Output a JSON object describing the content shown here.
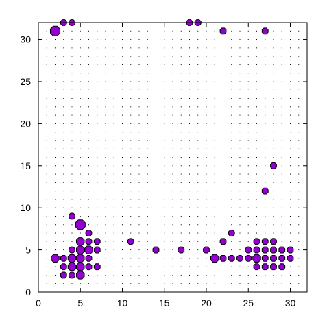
{
  "chart_data": {
    "type": "scatter",
    "title": "",
    "xlabel": "",
    "ylabel": "",
    "xlim": [
      0,
      32
    ],
    "ylim": [
      0,
      32
    ],
    "xticks": [
      0,
      5,
      10,
      15,
      20,
      25,
      30
    ],
    "yticks": [
      0,
      5,
      10,
      15,
      20,
      25,
      30
    ],
    "grid": "dotted, every integer",
    "legend": "none",
    "colors": {
      "marker_fill": "#9400d3",
      "marker_edge": "#000000",
      "grid": "#000000",
      "frame": "#000000"
    },
    "series": [
      {
        "points": [
          {
            "x": 2,
            "y": 31,
            "r": 1.6
          },
          {
            "x": 3,
            "y": 32,
            "r": 1.0
          },
          {
            "x": 4,
            "y": 32,
            "r": 1.0
          },
          {
            "x": 18,
            "y": 32,
            "r": 1.0
          },
          {
            "x": 19,
            "y": 32,
            "r": 1.0
          },
          {
            "x": 22,
            "y": 31,
            "r": 1.0
          },
          {
            "x": 27,
            "y": 31,
            "r": 1.0
          },
          {
            "x": 28,
            "y": 15,
            "r": 1.0
          },
          {
            "x": 27,
            "y": 12,
            "r": 1.0
          },
          {
            "x": 4,
            "y": 9,
            "r": 1.0
          },
          {
            "x": 5,
            "y": 8,
            "r": 1.6
          },
          {
            "x": 6,
            "y": 7,
            "r": 1.0
          },
          {
            "x": 23,
            "y": 7,
            "r": 1.0
          },
          {
            "x": 5,
            "y": 6,
            "r": 1.3
          },
          {
            "x": 6,
            "y": 6,
            "r": 1.0
          },
          {
            "x": 7,
            "y": 6,
            "r": 1.0
          },
          {
            "x": 11,
            "y": 6,
            "r": 1.0
          },
          {
            "x": 22,
            "y": 6,
            "r": 1.0
          },
          {
            "x": 26,
            "y": 6,
            "r": 1.0
          },
          {
            "x": 27,
            "y": 6,
            "r": 1.0
          },
          {
            "x": 28,
            "y": 6,
            "r": 1.0
          },
          {
            "x": 4,
            "y": 5,
            "r": 1.0
          },
          {
            "x": 5,
            "y": 5,
            "r": 1.3
          },
          {
            "x": 6,
            "y": 5,
            "r": 1.3
          },
          {
            "x": 7,
            "y": 5,
            "r": 1.0
          },
          {
            "x": 14,
            "y": 5,
            "r": 1.0
          },
          {
            "x": 17,
            "y": 5,
            "r": 1.0
          },
          {
            "x": 20,
            "y": 5,
            "r": 1.0
          },
          {
            "x": 25,
            "y": 5,
            "r": 1.0
          },
          {
            "x": 26,
            "y": 5,
            "r": 1.0
          },
          {
            "x": 27,
            "y": 5,
            "r": 1.0
          },
          {
            "x": 28,
            "y": 5,
            "r": 1.0
          },
          {
            "x": 29,
            "y": 5,
            "r": 1.0
          },
          {
            "x": 30,
            "y": 5,
            "r": 1.0
          },
          {
            "x": 2,
            "y": 4,
            "r": 1.3
          },
          {
            "x": 3,
            "y": 4,
            "r": 1.0
          },
          {
            "x": 4,
            "y": 4,
            "r": 1.3
          },
          {
            "x": 5,
            "y": 4,
            "r": 1.3
          },
          {
            "x": 6,
            "y": 4,
            "r": 1.0
          },
          {
            "x": 21,
            "y": 4,
            "r": 1.3
          },
          {
            "x": 22,
            "y": 4,
            "r": 1.0
          },
          {
            "x": 23,
            "y": 4,
            "r": 1.0
          },
          {
            "x": 24,
            "y": 4,
            "r": 1.0
          },
          {
            "x": 25,
            "y": 4,
            "r": 1.0
          },
          {
            "x": 26,
            "y": 4,
            "r": 1.3
          },
          {
            "x": 27,
            "y": 4,
            "r": 1.0
          },
          {
            "x": 28,
            "y": 4,
            "r": 1.0
          },
          {
            "x": 29,
            "y": 4,
            "r": 1.0
          },
          {
            "x": 30,
            "y": 4,
            "r": 1.0
          },
          {
            "x": 3,
            "y": 3,
            "r": 1.0
          },
          {
            "x": 4,
            "y": 3,
            "r": 1.3
          },
          {
            "x": 5,
            "y": 3,
            "r": 1.3
          },
          {
            "x": 6,
            "y": 3,
            "r": 1.0
          },
          {
            "x": 7,
            "y": 3,
            "r": 1.0
          },
          {
            "x": 26,
            "y": 3,
            "r": 1.0
          },
          {
            "x": 27,
            "y": 3,
            "r": 1.0
          },
          {
            "x": 28,
            "y": 3,
            "r": 1.0
          },
          {
            "x": 29,
            "y": 3,
            "r": 1.0
          },
          {
            "x": 3,
            "y": 2,
            "r": 1.0
          },
          {
            "x": 4,
            "y": 2,
            "r": 1.0
          },
          {
            "x": 5,
            "y": 2,
            "r": 1.3
          }
        ]
      }
    ]
  }
}
